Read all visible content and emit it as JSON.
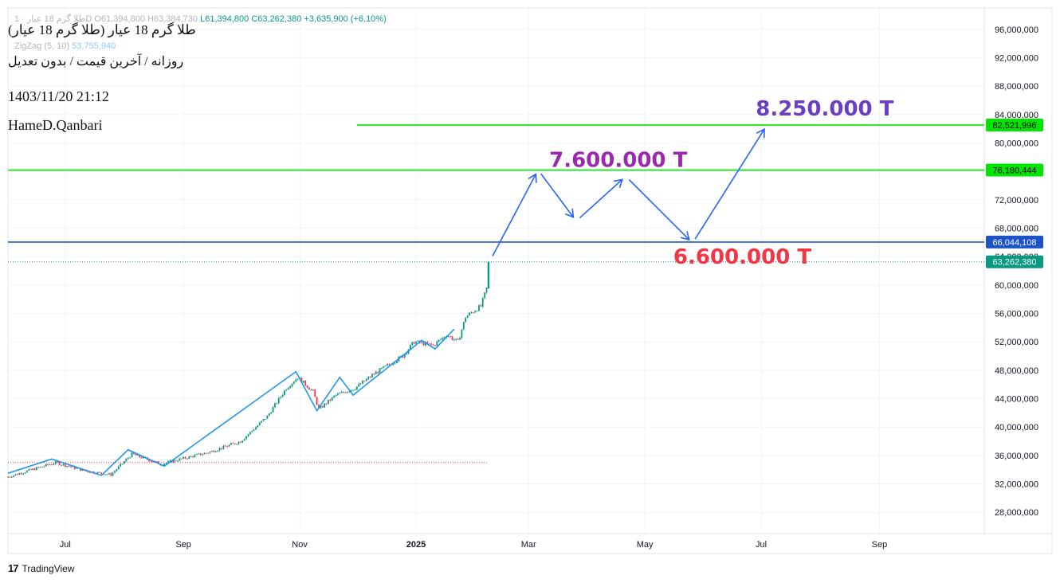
{
  "legend": {
    "symbol_line": "طلا گرم 18 عیار · 1D",
    "open": "O61,394,800",
    "high": "H63,384,730",
    "low": "L61,394,800",
    "close": "C63,262,380",
    "change": "+3,635,900 (+6.10%)",
    "ma_label": "ZigZag (5, 10)",
    "ma_value": "53,755,940"
  },
  "annotations": {
    "title": "طلا گرم 18 عیار (طلا گرم 18 عیار)",
    "subtitle": "روزانه / آخرین قیمت / بدون تعدیل",
    "datetime": "1403/11/20 21:12",
    "author": "HameD.Qanbari"
  },
  "footer": {
    "brand": "TradingView",
    "logo": "17"
  },
  "colors": {
    "up": "#089981",
    "down": "#f23645",
    "zigzag": "#2196f3",
    "green_line": "#00e600",
    "blue_line": "#1e53c8",
    "target_purple": "#9c27b0",
    "target_violet": "#6a3fc0",
    "target_red": "#e53946"
  },
  "chart_data": {
    "type": "candlestick",
    "x_axis_labels": [
      "Jul",
      "Sep",
      "Nov",
      "2025",
      "Mar",
      "May",
      "Jul",
      "Sep"
    ],
    "y_ticks": [
      28000000,
      32000000,
      36000000,
      40000000,
      44000000,
      48000000,
      52000000,
      56000000,
      60000000,
      64000000,
      68000000,
      72000000,
      76000000,
      80000000,
      84000000,
      88000000,
      92000000,
      96000000
    ],
    "y_tick_labels": [
      "28,000,000",
      "32,000,000",
      "36,000,000",
      "40,000,000",
      "44,000,000",
      "48,000,000",
      "52,000,000",
      "56,000,000",
      "60,000,000",
      "64,000,000",
      "68,000,000",
      "72,000,000",
      "76,000,000",
      "80,000,000",
      "84,000,000",
      "88,000,000",
      "92,000,000",
      "96,000,000"
    ],
    "ylim": [
      25000000,
      99000000
    ],
    "xlim": [
      "2024-06-01",
      "2025-10-26"
    ],
    "axis_dates": [
      "2024-07-01",
      "2024-09-01",
      "2024-11-01",
      "2025-01-01",
      "2025-03-01",
      "2025-05-01",
      "2025-07-01",
      "2025-09-01"
    ],
    "series": [
      {
        "name": "طلا گرم 18 عیار",
        "type": "candlestick",
        "close_path": [
          [
            "2024-06-01",
            33000000
          ],
          [
            "2024-06-26",
            35000000
          ],
          [
            "2024-07-12",
            33800000
          ],
          [
            "2024-07-25",
            33300000
          ],
          [
            "2024-08-05",
            36200000
          ],
          [
            "2024-08-20",
            34800000
          ],
          [
            "2024-09-15",
            36500000
          ],
          [
            "2024-10-01",
            38000000
          ],
          [
            "2024-10-15",
            41500000
          ],
          [
            "2024-10-25",
            45500000
          ],
          [
            "2024-10-31",
            47000000
          ],
          [
            "2024-11-08",
            45000000
          ],
          [
            "2024-11-11",
            42500000
          ],
          [
            "2024-11-20",
            44500000
          ],
          [
            "2024-11-30",
            45500000
          ],
          [
            "2024-12-10",
            47500000
          ],
          [
            "2024-12-25",
            50000000
          ],
          [
            "2024-12-31",
            52000000
          ],
          [
            "2025-01-10",
            51500000
          ],
          [
            "2025-01-17",
            53000000
          ],
          [
            "2025-01-23",
            52000000
          ],
          [
            "2025-01-27",
            55500000
          ],
          [
            "2025-02-01",
            56500000
          ],
          [
            "2025-02-04",
            57000000
          ],
          [
            "2025-02-07",
            59500000
          ],
          [
            "2025-02-08",
            63262380
          ]
        ]
      },
      {
        "name": "ZigZag (5, 10)",
        "type": "line",
        "points": [
          [
            "2024-06-01",
            33500000
          ],
          [
            "2024-06-24",
            35500000
          ],
          [
            "2024-07-20",
            33200000
          ],
          [
            "2024-08-03",
            36800000
          ],
          [
            "2024-08-22",
            34500000
          ],
          [
            "2024-10-30",
            47800000
          ],
          [
            "2024-11-10",
            42300000
          ],
          [
            "2024-11-22",
            47000000
          ],
          [
            "2024-11-29",
            44500000
          ],
          [
            "2025-01-04",
            52200000
          ],
          [
            "2025-01-11",
            51000000
          ],
          [
            "2025-01-21",
            53800000
          ]
        ]
      }
    ],
    "horizontal_lines": [
      {
        "value": 82521996,
        "label": "82,521,996",
        "color": "green",
        "from": "2024-12-01"
      },
      {
        "value": 76180444,
        "label": "76,180,444",
        "color": "green"
      },
      {
        "value": 66044108,
        "label": "66,044,108",
        "color": "blue"
      },
      {
        "value": 63262380,
        "label": "63,262,380",
        "color": "teal",
        "style": "dotted"
      },
      {
        "value": 35000000,
        "style": "dotted",
        "color": "red",
        "to": "2025-02-08"
      }
    ],
    "projection_path": [
      [
        "2025-02-09",
        63500000
      ],
      [
        "2025-03-06",
        76200000
      ],
      [
        "2025-03-26",
        69000000
      ],
      [
        "2025-04-21",
        75300000
      ],
      [
        "2025-05-26",
        65900000
      ],
      [
        "2025-07-04",
        82500000
      ]
    ],
    "targets": [
      {
        "label": "7.600.000 T",
        "color": "purple"
      },
      {
        "label": "6.600.000 T",
        "color": "red"
      },
      {
        "label": "8.250.000 T",
        "color": "violet"
      }
    ]
  }
}
